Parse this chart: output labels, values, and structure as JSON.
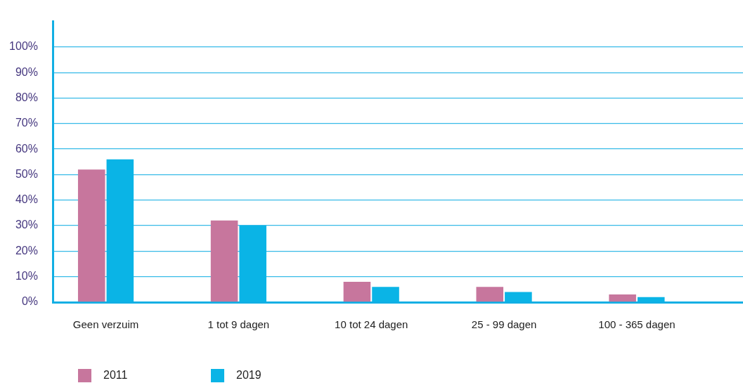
{
  "chart_data": {
    "type": "bar",
    "categories": [
      "Geen verzuim",
      "1 tot 9 dagen",
      "10 tot 24 dagen",
      "25 - 99 dagen",
      "100 - 365 dagen"
    ],
    "series": [
      {
        "name": "2011",
        "color": "#c7769d",
        "values": [
          52,
          32,
          8,
          6,
          3
        ]
      },
      {
        "name": "2019",
        "color": "#0ab4e6",
        "values": [
          56,
          30,
          6,
          4,
          2
        ]
      }
    ],
    "ylim": [
      0,
      110
    ],
    "yticks": [
      {
        "value": 0,
        "label": "0%"
      },
      {
        "value": 10,
        "label": "10%"
      },
      {
        "value": 20,
        "label": "20%"
      },
      {
        "value": 30,
        "label": "30%"
      },
      {
        "value": 40,
        "label": "40%"
      },
      {
        "value": 50,
        "label": "50%"
      },
      {
        "value": 60,
        "label": "60%"
      },
      {
        "value": 70,
        "label": "70%"
      },
      {
        "value": 80,
        "label": "80%"
      },
      {
        "value": 90,
        "label": "90%"
      },
      {
        "value": 100,
        "label": "100%"
      }
    ],
    "grid": "y",
    "legend": "bottom left"
  }
}
